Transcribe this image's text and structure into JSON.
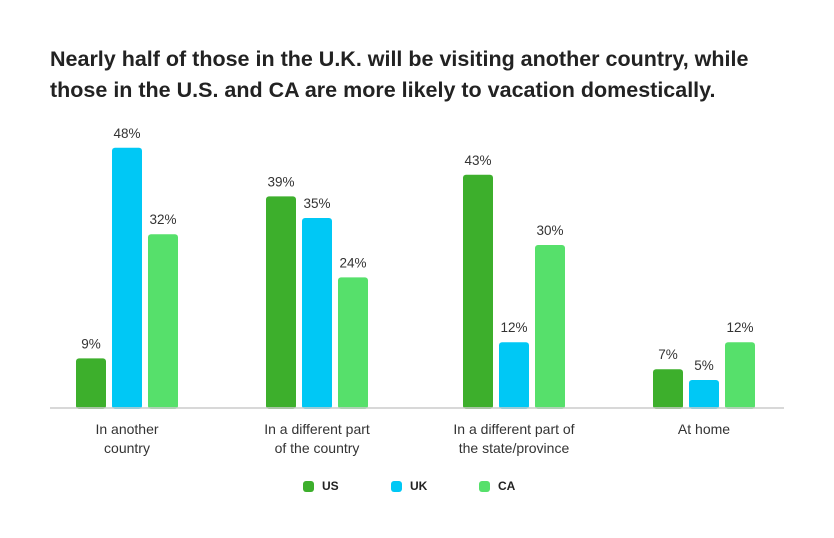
{
  "title": {
    "line1": "Nearly half of those in the U.K. will be visiting another country, while",
    "line2": "those in the U.S. and CA are more likely to vacation domestically."
  },
  "colors": {
    "US": "#3daf2c",
    "UK": "#00c8f5",
    "CA": "#56e06b",
    "axis": "#cccccc",
    "text": "#333333"
  },
  "chart_data": {
    "type": "bar",
    "categories": [
      [
        "In another",
        "country"
      ],
      [
        "In a different part",
        "of the country"
      ],
      [
        "In a different part of",
        "the state/province"
      ],
      [
        "At home"
      ]
    ],
    "series": [
      {
        "name": "US",
        "values": [
          9,
          39,
          43,
          7
        ],
        "labels": [
          "9%",
          "39%",
          "43%",
          "7%"
        ]
      },
      {
        "name": "UK",
        "values": [
          48,
          35,
          12,
          5
        ],
        "labels": [
          "48%",
          "35%",
          "12%",
          "5%"
        ]
      },
      {
        "name": "CA",
        "values": [
          32,
          24,
          30,
          12
        ],
        "labels": [
          "32%",
          "24%",
          "30%",
          "12%"
        ]
      }
    ],
    "ylim": [
      0,
      50
    ],
    "legend_position": "bottom-center",
    "grid": false
  }
}
